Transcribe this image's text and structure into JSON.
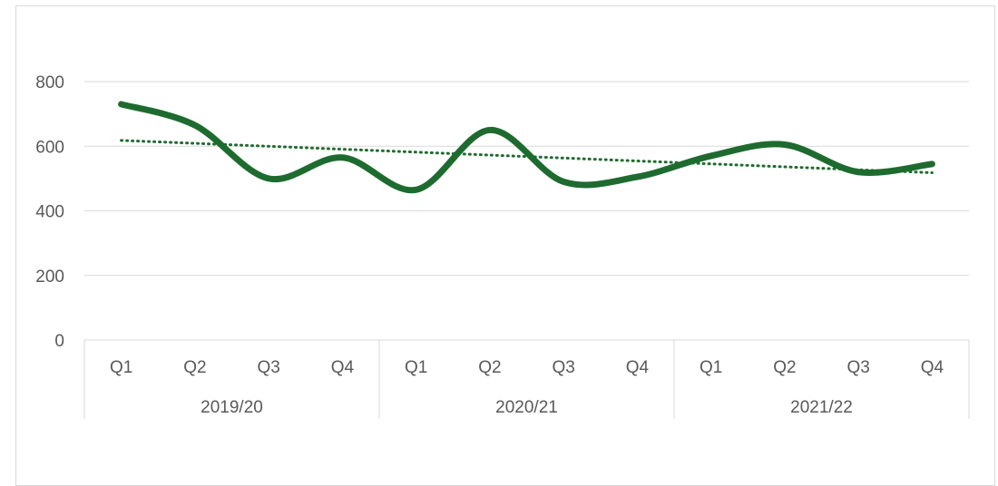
{
  "chart_data": {
    "type": "line",
    "title": "",
    "xlabel": "",
    "ylabel": "",
    "ylim": [
      0,
      800
    ],
    "y_ticks": [
      0,
      200,
      400,
      600,
      800
    ],
    "grid": true,
    "groups": [
      {
        "label": "2019/20",
        "categories": [
          "Q1",
          "Q2",
          "Q3",
          "Q4"
        ]
      },
      {
        "label": "2020/21",
        "categories": [
          "Q1",
          "Q2",
          "Q3",
          "Q4"
        ]
      },
      {
        "label": "2021/22",
        "categories": [
          "Q1",
          "Q2",
          "Q3",
          "Q4"
        ]
      }
    ],
    "categories": [
      "Q1",
      "Q2",
      "Q3",
      "Q4",
      "Q1",
      "Q2",
      "Q3",
      "Q4",
      "Q1",
      "Q2",
      "Q3",
      "Q4"
    ],
    "series": [
      {
        "values": [
          730,
          665,
          500,
          565,
          465,
          650,
          490,
          505,
          570,
          605,
          520,
          545
        ],
        "color": "#1e6b2f",
        "smooth": true
      }
    ],
    "trendline": {
      "type": "linear",
      "values": [
        618,
        518
      ],
      "style": "dotted",
      "color": "#1e6b2f"
    }
  }
}
